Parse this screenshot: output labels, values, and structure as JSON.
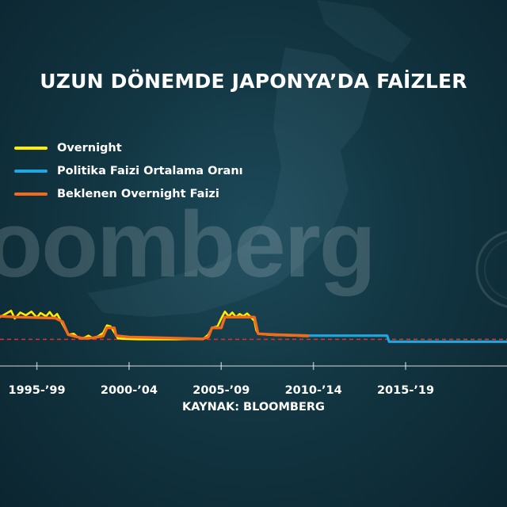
{
  "watermark": "oomberg",
  "colors": {
    "overnight": "#ffee00",
    "policy": "#1ea7e0",
    "expected": "#f26a1b",
    "ref_line": "#e0302a"
  },
  "chart_data": {
    "type": "line",
    "title": "UZUN DÖNEMDE JAPONYA’DA FAİZLER",
    "source": "KAYNAK: BLOOMBERG",
    "x_range": [
      1995.0,
      2022.5
    ],
    "y_range": [
      -0.2,
      1.0
    ],
    "x_tick_labels": [
      "1995-’99",
      "2000-’04",
      "2005-’09",
      "2010-’14",
      "2015-’19"
    ],
    "x_tick_positions": [
      1997,
      2002,
      2007,
      2012,
      2017
    ],
    "legend_placement": "top-left",
    "grid": false,
    "reference_line": {
      "y": 0,
      "style": "dashed"
    },
    "series": [
      {
        "name": "Overnight",
        "color": "#ffee00",
        "points": [
          [
            1995.0,
            0.48
          ],
          [
            1995.3,
            0.55
          ],
          [
            1995.6,
            0.62
          ],
          [
            1995.8,
            0.45
          ],
          [
            1996.1,
            0.58
          ],
          [
            1996.4,
            0.52
          ],
          [
            1996.7,
            0.6
          ],
          [
            1997.0,
            0.47
          ],
          [
            1997.2,
            0.57
          ],
          [
            1997.5,
            0.5
          ],
          [
            1997.7,
            0.59
          ],
          [
            1997.9,
            0.48
          ],
          [
            1998.1,
            0.55
          ],
          [
            1998.3,
            0.4
          ],
          [
            1998.5,
            0.25
          ],
          [
            1998.7,
            0.1
          ],
          [
            1999.0,
            0.12
          ],
          [
            1999.2,
            0.05
          ],
          [
            1999.4,
            0.02
          ],
          [
            1999.6,
            0.04
          ],
          [
            1999.8,
            0.08
          ],
          [
            2000.0,
            0.03
          ],
          [
            2000.3,
            0.06
          ],
          [
            2000.6,
            0.14
          ],
          [
            2000.8,
            0.3
          ],
          [
            2001.0,
            0.28
          ],
          [
            2001.2,
            0.15
          ],
          [
            2001.4,
            0.02
          ],
          [
            2001.8,
            0.01
          ],
          [
            2002.5,
            0.0
          ],
          [
            2003.5,
            0.0
          ],
          [
            2004.5,
            0.0
          ],
          [
            2005.5,
            0.01
          ],
          [
            2006.0,
            0.0
          ],
          [
            2006.3,
            0.1
          ],
          [
            2006.5,
            0.25
          ],
          [
            2006.8,
            0.28
          ],
          [
            2007.0,
            0.45
          ],
          [
            2007.2,
            0.6
          ],
          [
            2007.4,
            0.5
          ],
          [
            2007.6,
            0.58
          ],
          [
            2007.8,
            0.48
          ],
          [
            2008.0,
            0.55
          ],
          [
            2008.2,
            0.5
          ],
          [
            2008.4,
            0.56
          ],
          [
            2008.6,
            0.48
          ],
          [
            2008.8,
            0.4
          ],
          [
            2008.9,
            0.2
          ],
          [
            2009.0,
            0.12
          ],
          [
            2009.5,
            0.1
          ],
          [
            2010.0,
            0.09
          ],
          [
            2011.0,
            0.08
          ],
          [
            2011.7,
            0.07
          ]
        ]
      },
      {
        "name": "Politika Faizi Ortalama Oranı",
        "color": "#1ea7e0",
        "points": [
          [
            2011.7,
            0.08
          ],
          [
            2012.5,
            0.08
          ],
          [
            2013.5,
            0.08
          ],
          [
            2014.5,
            0.08
          ],
          [
            2015.5,
            0.08
          ],
          [
            2016.0,
            0.08
          ],
          [
            2016.1,
            -0.05
          ],
          [
            2017.0,
            -0.05
          ],
          [
            2018.5,
            -0.05
          ],
          [
            2020.0,
            -0.05
          ],
          [
            2021.5,
            -0.05
          ],
          [
            2022.5,
            -0.05
          ]
        ]
      },
      {
        "name": "Beklenen Overnight Faizi",
        "color": "#f26a1b",
        "points": [
          [
            1995.0,
            0.5
          ],
          [
            1996.0,
            0.48
          ],
          [
            1997.0,
            0.47
          ],
          [
            1998.0,
            0.46
          ],
          [
            1998.4,
            0.38
          ],
          [
            1998.7,
            0.1
          ],
          [
            1999.5,
            0.02
          ],
          [
            2000.0,
            0.03
          ],
          [
            2000.6,
            0.07
          ],
          [
            2000.8,
            0.25
          ],
          [
            2001.2,
            0.25
          ],
          [
            2001.3,
            0.08
          ],
          [
            2002.0,
            0.05
          ],
          [
            2003.0,
            0.04
          ],
          [
            2004.0,
            0.03
          ],
          [
            2005.0,
            0.02
          ],
          [
            2006.0,
            0.01
          ],
          [
            2006.3,
            0.05
          ],
          [
            2006.5,
            0.25
          ],
          [
            2007.0,
            0.25
          ],
          [
            2007.2,
            0.48
          ],
          [
            2008.8,
            0.48
          ],
          [
            2009.0,
            0.12
          ],
          [
            2010.0,
            0.1
          ],
          [
            2011.7,
            0.08
          ]
        ]
      }
    ]
  }
}
